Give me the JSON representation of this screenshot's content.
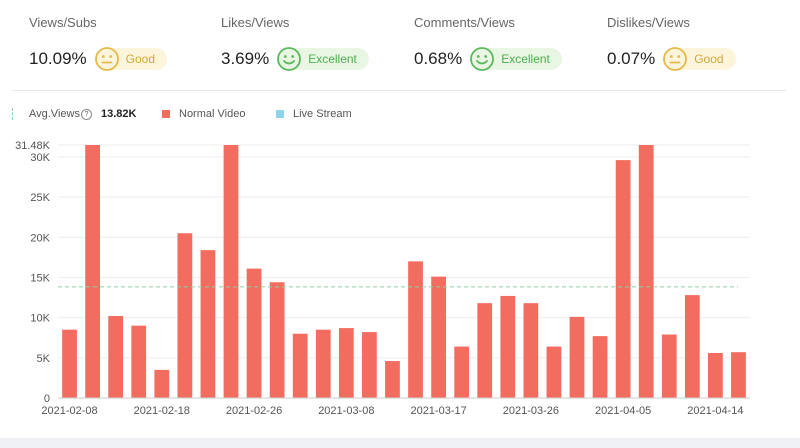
{
  "metrics": [
    {
      "label": "Views/Subs",
      "value": "10.09%",
      "rating": "Good",
      "mood": "neutral",
      "kind": "good"
    },
    {
      "label": "Likes/Views",
      "value": "3.69%",
      "rating": "Excellent",
      "mood": "happy",
      "kind": "excellent"
    },
    {
      "label": "Comments/Views",
      "value": "0.68%",
      "rating": "Excellent",
      "mood": "happy",
      "kind": "excellent"
    },
    {
      "label": "Dislikes/Views",
      "value": "0.07%",
      "rating": "Good",
      "mood": "neutral",
      "kind": "good"
    }
  ],
  "colors": {
    "bar": "#f36c60",
    "live": "#8fd3e8",
    "avg_line": "#8fcfa6",
    "grid": "#eeeeee",
    "good": "#e5b94a",
    "excellent": "#5cb85c"
  },
  "icons": {
    "help": "question-circle-icon",
    "happy": "smile-face-icon",
    "neutral": "neutral-face-icon"
  },
  "legend": {
    "avg_label": "Avg.Views",
    "avg_help": "?",
    "avg_value": "13.82K",
    "normal_label": "Normal Video",
    "live_label": "Live Stream"
  },
  "chart_data": {
    "type": "bar",
    "title": "",
    "xlabel": "",
    "ylabel": "",
    "ylim": [
      0,
      31480
    ],
    "yticks": [
      {
        "value": 0,
        "label": "0"
      },
      {
        "value": 5000,
        "label": "5K"
      },
      {
        "value": 10000,
        "label": "10K"
      },
      {
        "value": 15000,
        "label": "15K"
      },
      {
        "value": 20000,
        "label": "20K"
      },
      {
        "value": 25000,
        "label": "25K"
      },
      {
        "value": 30000,
        "label": "30K"
      },
      {
        "value": 31480,
        "label": "31.48K"
      }
    ],
    "average": 13820,
    "series": [
      {
        "name": "Normal Video",
        "values": [
          8500,
          31480,
          10200,
          9000,
          3500,
          20500,
          18400,
          31480,
          16100,
          14400,
          8000,
          8500,
          8700,
          8200,
          4600,
          17000,
          15100,
          6400,
          11800,
          12700,
          11800,
          6400,
          10100,
          7700,
          29600,
          31480,
          7900,
          12800,
          5600,
          5700
        ]
      },
      {
        "name": "Live Stream",
        "values": []
      }
    ],
    "xticks": [
      {
        "index": 0,
        "label": "2021-02-08"
      },
      {
        "index": 4,
        "label": "2021-02-18"
      },
      {
        "index": 8,
        "label": "2021-02-26"
      },
      {
        "index": 12,
        "label": "2021-03-08"
      },
      {
        "index": 16,
        "label": "2021-03-17"
      },
      {
        "index": 20,
        "label": "2021-03-26"
      },
      {
        "index": 24,
        "label": "2021-04-05"
      },
      {
        "index": 28,
        "label": "2021-04-14"
      }
    ]
  }
}
